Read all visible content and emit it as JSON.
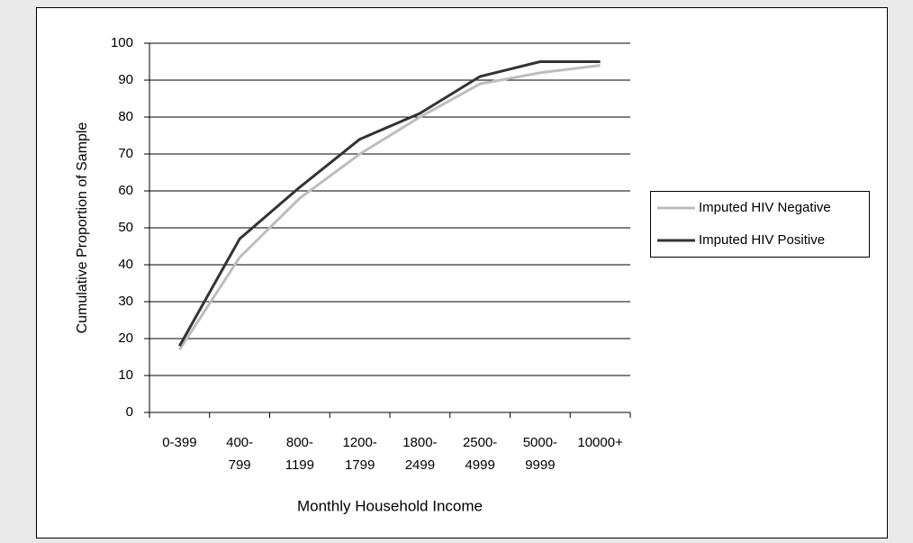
{
  "chart_data": {
    "type": "line",
    "categories": [
      "0-399",
      "400-799",
      "800-1199",
      "1200-1799",
      "1800-2499",
      "2500-4999",
      "5000-9999",
      "10000+"
    ],
    "series": [
      {
        "name": "Imputed HIV Negative",
        "color": "#bdbdbd",
        "values": [
          17,
          42,
          58,
          70,
          80,
          89,
          92,
          94
        ]
      },
      {
        "name": "Imputed HIV Positive",
        "color": "#333333",
        "values": [
          18,
          47,
          61,
          74,
          81,
          91,
          95,
          95
        ]
      }
    ],
    "x_label": "Monthly Household Income",
    "y_label": "Cumulative Proportion of Sample",
    "ylim": [
      0,
      100
    ],
    "yticks": [
      0,
      10,
      20,
      30,
      40,
      50,
      60,
      70,
      80,
      90,
      100
    ],
    "grid": true,
    "legend": "right"
  }
}
